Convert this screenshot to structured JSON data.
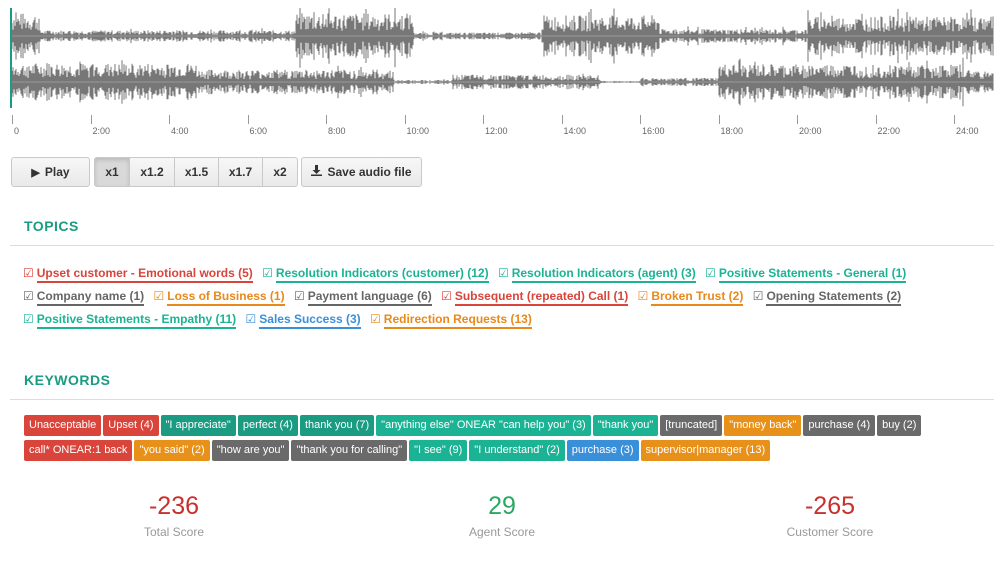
{
  "timeline": {
    "ticks": [
      "0",
      "2:00",
      "4:00",
      "6:00",
      "8:00",
      "10:00",
      "12:00",
      "14:00",
      "16:00",
      "18:00",
      "20:00",
      "22:00",
      "24:00"
    ]
  },
  "controls": {
    "play_label": "Play",
    "speeds": [
      "x1",
      "x1.2",
      "x1.5",
      "x1.7",
      "x2"
    ],
    "active_speed": "x1",
    "save_label": "Save audio file"
  },
  "topics": {
    "title": "TOPICS",
    "items": [
      {
        "label": "Upset customer - Emotional words (5)",
        "color": "red"
      },
      {
        "label": "Resolution Indicators (customer) (12)",
        "color": "teal"
      },
      {
        "label": "Resolution Indicators (agent) (3)",
        "color": "teal"
      },
      {
        "label": "Positive Statements - General (1)",
        "color": "teal"
      },
      {
        "label": "Company name (1)",
        "color": "gray"
      },
      {
        "label": "Loss of Business (1)",
        "color": "orange"
      },
      {
        "label": "Payment language (6)",
        "color": "gray"
      },
      {
        "label": "Subsequent (repeated) Call (1)",
        "color": "red"
      },
      {
        "label": "Broken Trust (2)",
        "color": "orange"
      },
      {
        "label": "Opening Statements (2)",
        "color": "gray"
      },
      {
        "label": "Positive Statements - Empathy (11)",
        "color": "teal"
      },
      {
        "label": "Sales Success (3)",
        "color": "blue"
      },
      {
        "label": "Redirection Requests (13)",
        "color": "orange"
      }
    ]
  },
  "keywords": {
    "title": "KEYWORDS",
    "items": [
      {
        "label": "Unacceptable",
        "color": "red"
      },
      {
        "label": "Upset (4)",
        "color": "red"
      },
      {
        "label": "\"I appreciate\"",
        "color": "teal"
      },
      {
        "label": "perfect (4)",
        "color": "teal"
      },
      {
        "label": "thank you (7)",
        "color": "teal"
      },
      {
        "label": "\"anything else\" ONEAR \"can help you\" (3)",
        "color": "teal2"
      },
      {
        "label": "\"thank you\"",
        "color": "teal2"
      },
      {
        "label": "[truncated]",
        "color": "gray"
      },
      {
        "label": "\"money back\"",
        "color": "orange"
      },
      {
        "label": "purchase (4)",
        "color": "gray"
      },
      {
        "label": "buy (2)",
        "color": "gray"
      },
      {
        "label": "call* ONEAR:1 back",
        "color": "red"
      },
      {
        "label": "\"you said\" (2)",
        "color": "orange"
      },
      {
        "label": "\"how are you\"",
        "color": "gray"
      },
      {
        "label": "\"thank you for calling\"",
        "color": "gray"
      },
      {
        "label": "\"I see\" (9)",
        "color": "teal2"
      },
      {
        "label": "\"I understand\" (2)",
        "color": "teal2"
      },
      {
        "label": "purchase (3)",
        "color": "blue"
      },
      {
        "label": "supervisor|manager (13)",
        "color": "orange"
      }
    ]
  },
  "scores": {
    "total": {
      "value": "-236",
      "caption": "Total Score"
    },
    "agent": {
      "value": "29",
      "caption": "Agent Score"
    },
    "customer": {
      "value": "-265",
      "caption": "Customer Score"
    }
  },
  "colors": {
    "accent": "#1a9b82",
    "red": "#d9443b",
    "teal": "#1ab394",
    "gray": "#666666",
    "orange": "#e8891a",
    "blue": "#3a8fd9"
  }
}
